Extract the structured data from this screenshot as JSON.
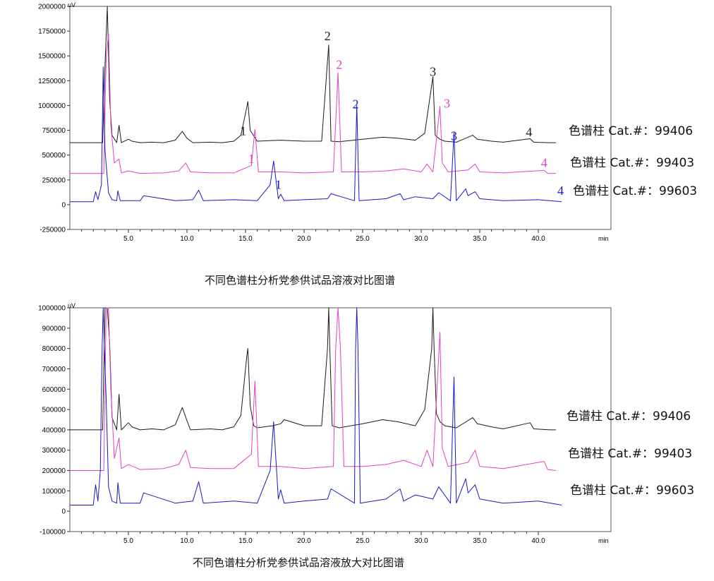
{
  "colors": {
    "black": "#1a1a1a",
    "magenta": "#e040c8",
    "blue": "#1818c8",
    "frame": "#555555"
  },
  "chart_data": [
    {
      "type": "line",
      "caption": "不同色谱柱分析党参供试品溶液对比图谱",
      "y_unit": "uV",
      "x_unit": "min",
      "xlim": [
        0,
        41.5
      ],
      "ylim": [
        -250000,
        2000000
      ],
      "x_ticks": [
        "5.0",
        "10.0",
        "15.0",
        "20.0",
        "25.0",
        "30.0",
        "35.0",
        "40.0"
      ],
      "y_ticks": [
        "2000000",
        "1750000",
        "1500000",
        "1250000",
        "1000000",
        "750000",
        "500000",
        "250000",
        "0",
        "-250000"
      ],
      "series": [
        {
          "name": "色谱柱 Cat.#：99406",
          "color": "#1a1a1a",
          "baseline": 625000,
          "x": [
            0.0,
            2.8,
            3.0,
            3.2,
            3.4,
            3.6,
            4.0,
            4.2,
            4.4,
            5.0,
            5.3,
            6.0,
            7.0,
            8.0,
            9.0,
            9.6,
            10.0,
            10.5,
            12.0,
            13.0,
            14.0,
            14.6,
            15.1,
            15.2,
            15.4,
            16.0,
            18.0,
            20.0,
            21.5,
            22.1,
            22.3,
            23.0,
            25.0,
            26.7,
            28.0,
            29.5,
            30.3,
            31.0,
            31.2,
            31.6,
            32.0,
            33.0,
            34.4,
            34.8,
            36.0,
            37.0,
            39.3,
            39.6,
            41.0,
            41.5
          ],
          "y": [
            625000,
            625000,
            1400000,
            2000000,
            1060000,
            700000,
            625000,
            800000,
            625000,
            660000,
            640000,
            625000,
            630000,
            625000,
            650000,
            740000,
            670000,
            625000,
            630000,
            625000,
            640000,
            700000,
            980000,
            1040000,
            750000,
            640000,
            650000,
            640000,
            640000,
            1610000,
            640000,
            635000,
            660000,
            680000,
            670000,
            650000,
            720000,
            1290000,
            700000,
            660000,
            640000,
            630000,
            700000,
            660000,
            640000,
            630000,
            665000,
            630000,
            625000,
            625000
          ]
        },
        {
          "name": "色谱柱 Cat.#：99403",
          "color": "#e040c8",
          "baseline": 315000,
          "x": [
            0.0,
            2.9,
            3.1,
            3.3,
            3.5,
            3.8,
            4.2,
            4.4,
            5.0,
            6.0,
            8.0,
            9.3,
            9.9,
            10.3,
            12.0,
            14.0,
            15.5,
            15.8,
            16.1,
            18.0,
            20.0,
            22.5,
            22.9,
            23.2,
            25.0,
            27.0,
            28.5,
            30.0,
            30.5,
            31.0,
            31.6,
            31.8,
            32.3,
            34.0,
            34.6,
            35.0,
            37.0,
            40.5,
            40.8,
            41.5
          ],
          "y": [
            315000,
            315000,
            1500000,
            1720000,
            800000,
            420000,
            460000,
            320000,
            340000,
            315000,
            320000,
            340000,
            420000,
            330000,
            320000,
            320000,
            395000,
            760000,
            330000,
            330000,
            320000,
            330000,
            1330000,
            330000,
            330000,
            340000,
            360000,
            330000,
            410000,
            330000,
            990000,
            420000,
            330000,
            350000,
            410000,
            330000,
            320000,
            345000,
            315000,
            315000
          ]
        },
        {
          "name": "色谱柱 Cat.#：99603",
          "color": "#1818c8",
          "baseline": 30000,
          "x": [
            0.0,
            2.0,
            2.2,
            2.4,
            2.7,
            2.85,
            3.0,
            3.3,
            3.6,
            4.0,
            4.1,
            4.3,
            6.0,
            6.3,
            9.0,
            10.5,
            11.0,
            11.4,
            14.0,
            16.0,
            17.1,
            17.4,
            17.8,
            18.0,
            18.3,
            20.0,
            22.0,
            22.3,
            24.3,
            24.5,
            24.7,
            27.0,
            28.2,
            28.5,
            29.5,
            31.0,
            31.5,
            32.5,
            32.8,
            33.0,
            33.8,
            34.0,
            34.6,
            35.0,
            37.0,
            40.0,
            42.0
          ],
          "y": [
            30000,
            30000,
            130000,
            50000,
            200000,
            1390000,
            550000,
            120000,
            50000,
            40000,
            140000,
            40000,
            40000,
            90000,
            40000,
            50000,
            145000,
            40000,
            50000,
            40000,
            200000,
            440000,
            60000,
            105000,
            40000,
            50000,
            60000,
            110000,
            40000,
            1000000,
            40000,
            60000,
            110000,
            50000,
            80000,
            60000,
            120000,
            40000,
            730000,
            40000,
            160000,
            90000,
            130000,
            60000,
            40000,
            50000,
            30000
          ]
        }
      ],
      "peak_labels": [
        {
          "text": "1",
          "color": "#1a1a1a",
          "x": 14.8,
          "y": 700000
        },
        {
          "text": "2",
          "color": "#1a1a1a",
          "x": 22.0,
          "y": 1660000
        },
        {
          "text": "3",
          "color": "#1a1a1a",
          "x": 31.0,
          "y": 1300000
        },
        {
          "text": "4",
          "color": "#1a1a1a",
          "x": 39.2,
          "y": 690000
        },
        {
          "text": "1",
          "color": "#e040c8",
          "x": 15.5,
          "y": 420000
        },
        {
          "text": "2",
          "color": "#e040c8",
          "x": 23.0,
          "y": 1370000
        },
        {
          "text": "3",
          "color": "#e040c8",
          "x": 32.2,
          "y": 980000
        },
        {
          "text": "4",
          "color": "#e040c8",
          "x": 40.5,
          "y": 380000
        },
        {
          "text": "1",
          "color": "#1818c8",
          "x": 17.8,
          "y": 160000
        },
        {
          "text": "2",
          "color": "#1818c8",
          "x": 24.4,
          "y": 970000
        },
        {
          "text": "3",
          "color": "#1818c8",
          "x": 32.8,
          "y": 650000
        },
        {
          "text": "4",
          "color": "#1818c8",
          "x": 41.9,
          "y": 100000
        }
      ],
      "trace_labels": [
        "色谱柱 Cat.#：99406",
        "色谱柱 Cat.#：99403",
        "色谱柱 Cat.#：99603"
      ],
      "grid": false
    },
    {
      "type": "line",
      "caption": "不同色谱柱分析党参供试品溶液放大对比图谱",
      "y_unit": "uV",
      "x_unit": "min",
      "xlim": [
        0,
        41.5
      ],
      "ylim": [
        -100000,
        1000000
      ],
      "x_ticks": [
        "5.0",
        "10.0",
        "15.0",
        "20.0",
        "25.0",
        "30.0",
        "35.0",
        "40.0"
      ],
      "y_ticks": [
        "1000000",
        "900000",
        "800000",
        "700000",
        "600000",
        "500000",
        "400000",
        "300000",
        "200000",
        "100000",
        "0",
        "-100000"
      ],
      "series": [
        {
          "name": "色谱柱 Cat.#：99406",
          "color": "#1a1a1a",
          "baseline": 400000,
          "x": [
            0.0,
            2.8,
            3.0,
            3.2,
            3.4,
            3.6,
            4.0,
            4.2,
            4.4,
            5.0,
            5.3,
            6.0,
            7.0,
            8.0,
            9.0,
            9.6,
            10.0,
            10.3,
            12.0,
            13.0,
            14.0,
            14.6,
            15.1,
            15.2,
            15.4,
            15.7,
            16.0,
            17.3,
            18.0,
            18.3,
            20.0,
            21.5,
            22.0,
            22.1,
            22.2,
            22.4,
            23.0,
            25.0,
            26.7,
            28.0,
            29.5,
            30.3,
            30.9,
            31.0,
            31.1,
            31.3,
            31.6,
            32.0,
            33.0,
            34.4,
            34.8,
            36.0,
            37.0,
            39.3,
            39.6,
            41.0,
            41.5
          ],
          "y": [
            400000,
            400000,
            1000000,
            1000000,
            830000,
            460000,
            400000,
            575000,
            400000,
            435000,
            415000,
            400000,
            405000,
            400000,
            425000,
            510000,
            445000,
            400000,
            405000,
            400000,
            415000,
            470000,
            760000,
            800000,
            520000,
            420000,
            410000,
            420000,
            430000,
            450000,
            420000,
            420000,
            800000,
            1000000,
            800000,
            420000,
            410000,
            430000,
            450000,
            440000,
            420000,
            500000,
            800000,
            1000000,
            800000,
            480000,
            440000,
            420000,
            410000,
            460000,
            430000,
            415000,
            405000,
            435000,
            405000,
            400000,
            400000
          ]
        },
        {
          "name": "色谱柱 Cat.#：99403",
          "color": "#e040c8",
          "baseline": 200000,
          "x": [
            0.0,
            2.9,
            3.1,
            3.3,
            3.5,
            3.8,
            4.2,
            4.4,
            5.0,
            6.0,
            8.0,
            9.3,
            9.9,
            10.3,
            12.0,
            14.0,
            15.5,
            15.8,
            16.1,
            18.0,
            20.0,
            22.5,
            22.7,
            22.9,
            23.1,
            23.4,
            25.0,
            27.0,
            28.5,
            30.0,
            30.5,
            31.0,
            31.6,
            31.8,
            32.3,
            34.0,
            34.6,
            35.0,
            37.0,
            40.5,
            40.8,
            41.5
          ],
          "y": [
            200000,
            200000,
            1000000,
            1000000,
            600000,
            260000,
            360000,
            210000,
            230000,
            205000,
            210000,
            230000,
            300000,
            215000,
            210000,
            210000,
            280000,
            640000,
            220000,
            220000,
            210000,
            220000,
            800000,
            1000000,
            800000,
            220000,
            220000,
            230000,
            250000,
            220000,
            300000,
            220000,
            880000,
            310000,
            220000,
            240000,
            300000,
            220000,
            210000,
            245000,
            205000,
            200000
          ]
        },
        {
          "name": "色谱柱 Cat.#：99603",
          "color": "#1818c8",
          "baseline": 30000,
          "x": [
            0.0,
            2.0,
            2.2,
            2.4,
            2.6,
            2.75,
            2.85,
            2.95,
            3.1,
            3.3,
            3.6,
            4.0,
            4.1,
            4.3,
            6.0,
            6.3,
            9.0,
            10.5,
            11.0,
            11.4,
            14.0,
            16.0,
            17.1,
            17.4,
            17.8,
            18.0,
            18.3,
            20.0,
            22.0,
            22.3,
            24.3,
            24.4,
            24.5,
            24.6,
            24.8,
            27.0,
            28.2,
            28.5,
            29.5,
            31.0,
            31.5,
            32.5,
            32.8,
            33.0,
            33.8,
            34.0,
            34.6,
            35.0,
            37.0,
            40.0,
            42.0
          ],
          "y": [
            30000,
            30000,
            130000,
            50000,
            200000,
            800000,
            1000000,
            800000,
            550000,
            120000,
            50000,
            40000,
            140000,
            40000,
            40000,
            90000,
            40000,
            50000,
            145000,
            40000,
            50000,
            40000,
            200000,
            440000,
            60000,
            105000,
            40000,
            50000,
            60000,
            110000,
            40000,
            800000,
            1000000,
            800000,
            40000,
            60000,
            110000,
            50000,
            80000,
            60000,
            120000,
            40000,
            660000,
            40000,
            160000,
            90000,
            130000,
            60000,
            40000,
            50000,
            30000
          ]
        }
      ],
      "trace_labels": [
        "色谱柱 Cat.#：99406",
        "色谱柱 Cat.#：99403",
        "色谱柱 Cat.#：99603"
      ],
      "grid": false
    }
  ]
}
